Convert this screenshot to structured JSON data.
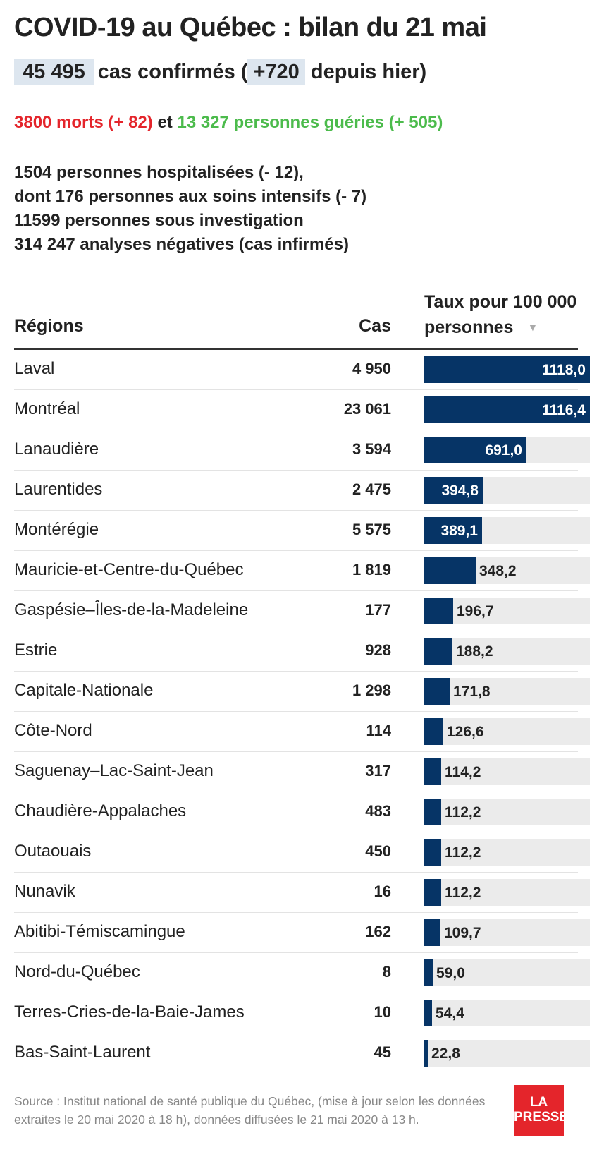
{
  "title": "COVID-19 au Québec : bilan du 21 mai",
  "confirmed": {
    "total": "45 495",
    "text_a": "cas confirmés (",
    "delta": "+720",
    "text_b": " depuis hier)"
  },
  "deaths_line": {
    "deaths": "3800 morts (+ 82)",
    "conj": " et ",
    "recovered": "13 327 personnes guéries (+ 505)"
  },
  "hospital_lines": [
    "1504 personnes hospitalisées (- 12),",
    "dont 176 personnes aux soins intensifs (- 7)",
    "11599 personnes sous investigation",
    "314 247 analyses négatives (cas infirmés)"
  ],
  "table": {
    "col_region": "Régions",
    "col_cases": "Cas",
    "col_rate_line1": "Taux pour 100 000",
    "col_rate_line2": "personnes",
    "sort_icon": "▼"
  },
  "chart_data": {
    "type": "bar",
    "orientation": "horizontal",
    "xlim": [
      0,
      1118.0
    ],
    "categories": [
      "Laval",
      "Montréal",
      "Lanaudière",
      "Laurentides",
      "Montérégie",
      "Mauricie-et-Centre-du-Québec",
      "Gaspésie–Îles-de-la-Madeleine",
      "Estrie",
      "Capitale-Nationale",
      "Côte-Nord",
      "Saguenay–Lac-Saint-Jean",
      "Chaudière-Appalaches",
      "Outaouais",
      "Nunavik",
      "Abitibi-Témiscamingue",
      "Nord-du-Québec",
      "Terres-Cries-de-la-Baie-James",
      "Bas-Saint-Laurent"
    ],
    "cases": [
      "4 950",
      "23 061",
      "3 594",
      "2 475",
      "5 575",
      "1 819",
      "177",
      "928",
      "1 298",
      "114",
      "317",
      "483",
      "450",
      "16",
      "162",
      "8",
      "10",
      "45"
    ],
    "values": [
      1118.0,
      1116.4,
      691.0,
      394.8,
      389.1,
      348.2,
      196.7,
      188.2,
      171.8,
      126.6,
      114.2,
      112.2,
      112.2,
      112.2,
      109.7,
      59.0,
      54.4,
      22.8
    ],
    "labels": [
      "1118,0",
      "1116,4",
      "691,0",
      "394,8",
      "389,1",
      "348,2",
      "196,7",
      "188,2",
      "171,8",
      "126,6",
      "114,2",
      "112,2",
      "112,2",
      "112,2",
      "109,7",
      "59,0",
      "54,4",
      "22,8"
    ],
    "bar_color": "#063466",
    "track_color": "#ebebeb"
  },
  "source": "Source : Institut national de santé publique du Québec, (mise à jour selon les données extraites le 20 mai 2020 à 18 h), données diffusées le 21 mai 2020 à 13 h.",
  "logo": {
    "line1": "LA",
    "line2": "PRESSE"
  },
  "colors": {
    "accent_red": "#e4252b",
    "accent_green": "#4cbb4c",
    "highlight": "#dde6ef"
  }
}
